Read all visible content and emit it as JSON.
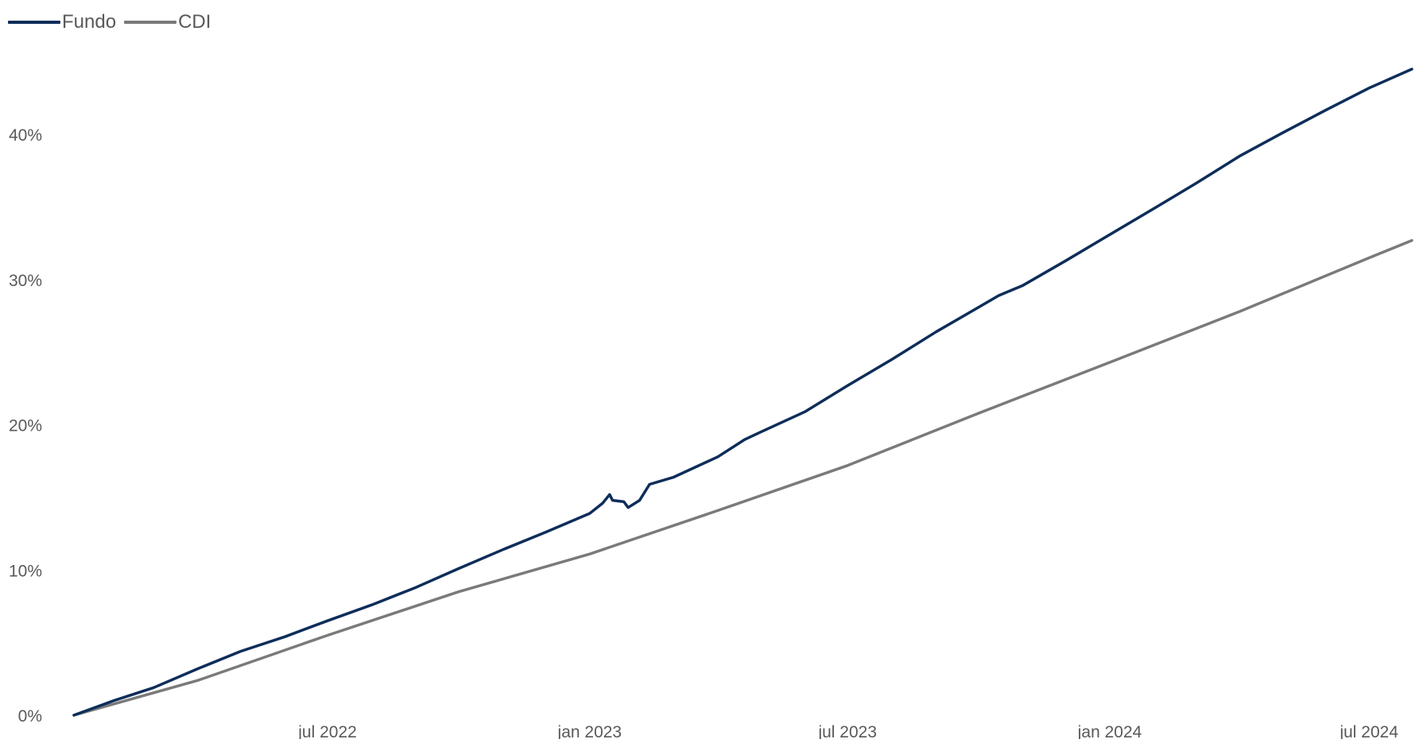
{
  "chart_data": {
    "type": "line",
    "title": "",
    "xlabel": "",
    "ylabel": "",
    "legend_position": "top-left",
    "grid": false,
    "x_range": [
      "2022-01-04",
      "2024-07-31"
    ],
    "x_ticks": [
      {
        "date": "2022-07-01",
        "label": "jul 2022"
      },
      {
        "date": "2023-01-01",
        "label": "jan 2023"
      },
      {
        "date": "2023-07-01",
        "label": "jul 2023"
      },
      {
        "date": "2024-01-01",
        "label": "jan 2024"
      },
      {
        "date": "2024-07-01",
        "label": "jul 2024"
      }
    ],
    "y_range": [
      0,
      44.5
    ],
    "y_ticks": [
      {
        "value": 0,
        "label": "0%"
      },
      {
        "value": 10,
        "label": "10%"
      },
      {
        "value": 20,
        "label": "20%"
      },
      {
        "value": 30,
        "label": "30%"
      },
      {
        "value": 40,
        "label": "40%"
      }
    ],
    "series": [
      {
        "name": "Fundo",
        "color": "#0e2d5a",
        "points": [
          [
            "2022-01-04",
            0.0
          ],
          [
            "2022-02-01",
            1.0
          ],
          [
            "2022-03-01",
            1.9
          ],
          [
            "2022-04-01",
            3.2
          ],
          [
            "2022-05-01",
            4.4
          ],
          [
            "2022-06-01",
            5.4
          ],
          [
            "2022-07-01",
            6.5
          ],
          [
            "2022-08-01",
            7.6
          ],
          [
            "2022-09-01",
            8.8
          ],
          [
            "2022-10-01",
            10.1
          ],
          [
            "2022-11-01",
            11.4
          ],
          [
            "2022-12-01",
            12.6
          ],
          [
            "2023-01-01",
            13.9
          ],
          [
            "2023-01-10",
            14.6
          ],
          [
            "2023-01-15",
            15.2
          ],
          [
            "2023-01-17",
            14.8
          ],
          [
            "2023-01-25",
            14.7
          ],
          [
            "2023-01-28",
            14.3
          ],
          [
            "2023-02-05",
            14.8
          ],
          [
            "2023-02-12",
            15.9
          ],
          [
            "2023-03-01",
            16.4
          ],
          [
            "2023-04-01",
            17.8
          ],
          [
            "2023-04-20",
            19.0
          ],
          [
            "2023-05-01",
            19.5
          ],
          [
            "2023-06-01",
            20.9
          ],
          [
            "2023-07-01",
            22.7
          ],
          [
            "2023-08-01",
            24.5
          ],
          [
            "2023-09-01",
            26.4
          ],
          [
            "2023-10-01",
            28.1
          ],
          [
            "2023-10-15",
            28.9
          ],
          [
            "2023-11-01",
            29.6
          ],
          [
            "2023-12-01",
            31.3
          ],
          [
            "2024-01-01",
            33.1
          ],
          [
            "2024-02-01",
            34.9
          ],
          [
            "2024-03-01",
            36.6
          ],
          [
            "2024-04-01",
            38.5
          ],
          [
            "2024-05-01",
            40.1
          ],
          [
            "2024-06-01",
            41.7
          ],
          [
            "2024-07-01",
            43.2
          ],
          [
            "2024-07-31",
            44.5
          ]
        ]
      },
      {
        "name": "CDI",
        "color": "#7a7a7a",
        "points": [
          [
            "2022-01-04",
            0.0
          ],
          [
            "2022-04-01",
            2.4
          ],
          [
            "2022-07-01",
            5.5
          ],
          [
            "2022-10-01",
            8.5
          ],
          [
            "2023-01-01",
            11.1
          ],
          [
            "2023-04-01",
            14.1
          ],
          [
            "2023-07-01",
            17.2
          ],
          [
            "2023-10-01",
            20.8
          ],
          [
            "2024-01-01",
            24.3
          ],
          [
            "2024-04-01",
            27.8
          ],
          [
            "2024-07-01",
            31.5
          ],
          [
            "2024-07-31",
            32.7
          ]
        ]
      }
    ]
  }
}
